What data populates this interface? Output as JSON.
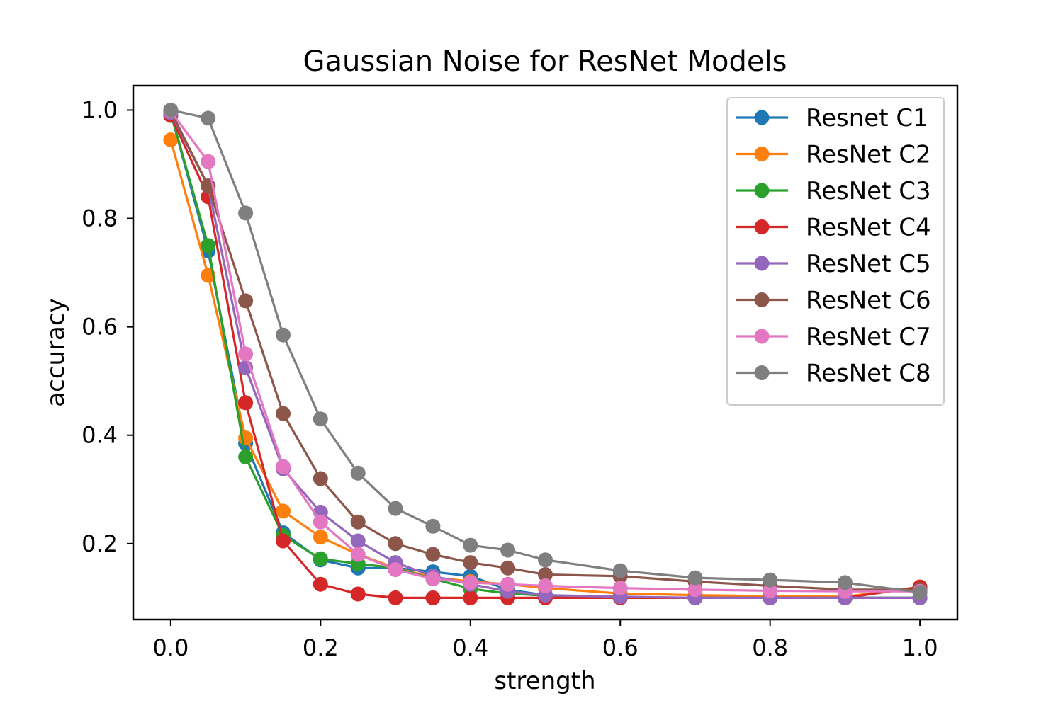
{
  "chart_data": {
    "type": "line",
    "title": "Gaussian Noise for ResNet Models",
    "xlabel": "strength",
    "ylabel": "accuracy",
    "xlim": [
      -0.05,
      1.05
    ],
    "ylim": [
      0.06,
      1.045
    ],
    "xticks": [
      0.0,
      0.2,
      0.4,
      0.6,
      0.8,
      1.0
    ],
    "xtick_labels": [
      "0.0",
      "0.2",
      "0.4",
      "0.6",
      "0.8",
      "1.0"
    ],
    "yticks": [
      0.2,
      0.4,
      0.6,
      0.8,
      1.0
    ],
    "ytick_labels": [
      "0.2",
      "0.4",
      "0.6",
      "0.8",
      "1.0"
    ],
    "grid": false,
    "legend_position": "top-right",
    "x": [
      0.0,
      0.05,
      0.1,
      0.15,
      0.2,
      0.25,
      0.3,
      0.35,
      0.4,
      0.45,
      0.5,
      0.6,
      0.7,
      0.8,
      0.9,
      1.0
    ],
    "series": [
      {
        "name": "Resnet C1",
        "color": "#1f77b4",
        "values": [
          0.995,
          0.74,
          0.385,
          0.22,
          0.17,
          0.155,
          0.155,
          0.148,
          0.14,
          0.115,
          0.105,
          0.1,
          0.1,
          0.1,
          0.1,
          0.1
        ]
      },
      {
        "name": "ResNet C2",
        "color": "#ff7f0e",
        "values": [
          0.945,
          0.695,
          0.395,
          0.26,
          0.212,
          0.18,
          0.155,
          0.138,
          0.13,
          0.125,
          0.118,
          0.108,
          0.105,
          0.103,
          0.102,
          0.12
        ]
      },
      {
        "name": "ResNet C3",
        "color": "#2ca02c",
        "values": [
          0.995,
          0.75,
          0.36,
          0.215,
          0.172,
          0.163,
          0.155,
          0.135,
          0.117,
          0.108,
          0.104,
          0.101,
          0.1,
          0.1,
          0.1,
          0.1
        ]
      },
      {
        "name": "ResNet C4",
        "color": "#d62728",
        "values": [
          0.99,
          0.84,
          0.46,
          0.205,
          0.125,
          0.107,
          0.1,
          0.1,
          0.1,
          0.1,
          0.1,
          0.1,
          0.1,
          0.1,
          0.1,
          0.12
        ]
      },
      {
        "name": "ResNet C5",
        "color": "#9467bd",
        "values": [
          0.995,
          0.86,
          0.525,
          0.338,
          0.258,
          0.205,
          0.165,
          0.14,
          0.125,
          0.112,
          0.105,
          0.102,
          0.1,
          0.1,
          0.1,
          0.1
        ]
      },
      {
        "name": "ResNet C6",
        "color": "#8c564b",
        "values": [
          0.998,
          0.86,
          0.648,
          0.44,
          0.32,
          0.24,
          0.2,
          0.18,
          0.165,
          0.155,
          0.143,
          0.14,
          0.13,
          0.122,
          0.115,
          0.115
        ]
      },
      {
        "name": "ResNet C7",
        "color": "#e377c2",
        "values": [
          0.998,
          0.905,
          0.55,
          0.342,
          0.24,
          0.18,
          0.152,
          0.135,
          0.128,
          0.125,
          0.122,
          0.118,
          0.115,
          0.113,
          0.112,
          0.112
        ]
      },
      {
        "name": "ResNet C8",
        "color": "#7f7f7f",
        "values": [
          1.0,
          0.985,
          0.81,
          0.585,
          0.43,
          0.33,
          0.265,
          0.232,
          0.197,
          0.188,
          0.17,
          0.15,
          0.137,
          0.133,
          0.128,
          0.11
        ]
      }
    ]
  }
}
